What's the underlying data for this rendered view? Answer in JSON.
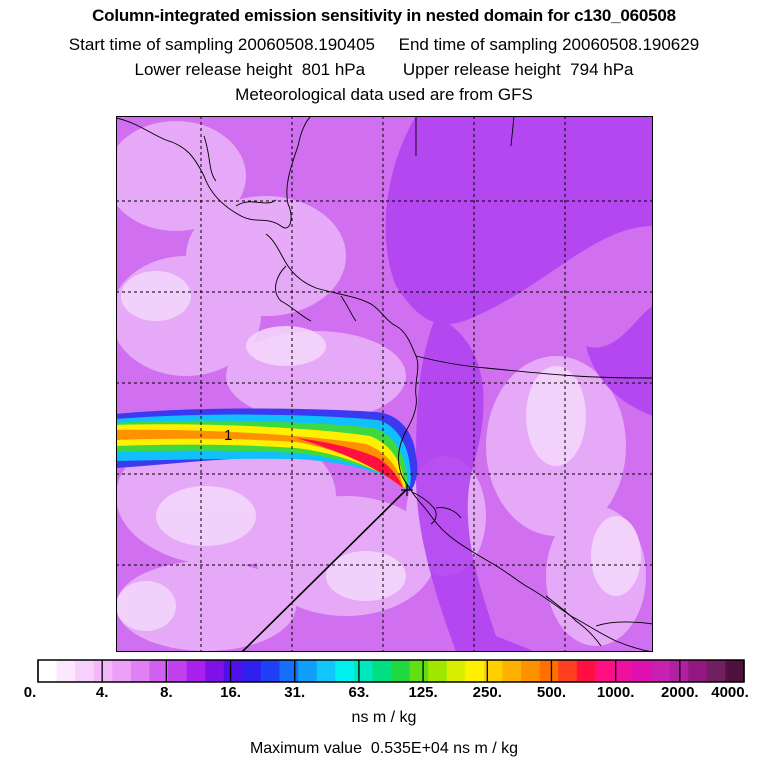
{
  "title": "Column-integrated emission sensitivity in nested domain for c130_060508",
  "subtitle_time": "Start time of sampling 20060508.190405     End time of sampling 20060508.190629",
  "subtitle_height": "Lower release height  801 hPa        Upper release height  794 hPa",
  "subtitle_met": "Meteorological data used are from GFS",
  "map": {
    "plume_label": "1",
    "colors": {
      "background": "#d070f0",
      "light_patch": "#e8b0f8",
      "pale_patch": "#f4d8fc",
      "dark_patch": "#b040f0",
      "coast": "#000000",
      "grid": "#000000"
    }
  },
  "colorbar": {
    "tick_labels": [
      "0.",
      "4.",
      "8.",
      "16.",
      "31.",
      "63.",
      "125.",
      "250.",
      "500.",
      "1000.",
      "2000.",
      "4000."
    ],
    "colors": [
      "#ffffff",
      "#fce8fe",
      "#f8d0fc",
      "#f4b8fa",
      "#eca0f8",
      "#e080f4",
      "#d060f0",
      "#c040ee",
      "#a820ec",
      "#8010e8",
      "#5010e8",
      "#3020f0",
      "#2040f8",
      "#1870fa",
      "#10a0fc",
      "#10c8fe",
      "#00f0f0",
      "#00e8c0",
      "#00e080",
      "#20d840",
      "#60e010",
      "#a0e800",
      "#d8f000",
      "#fff000",
      "#ffd000",
      "#ffb000",
      "#ff9000",
      "#ff7000",
      "#ff4020",
      "#ff1040",
      "#ff1080",
      "#f010a0",
      "#e010b0",
      "#c820b0",
      "#b020a0",
      "#901880",
      "#702060",
      "#501040"
    ],
    "unit": "ns m / kg"
  },
  "max_value_text": "Maximum value  0.535E+04 ns m / kg"
}
